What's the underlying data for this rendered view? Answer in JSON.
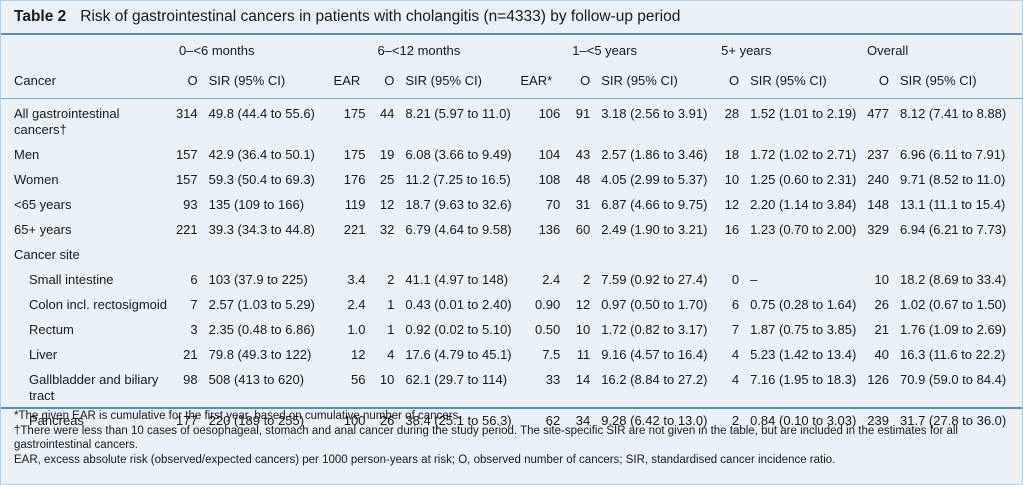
{
  "title": {
    "number": "Table 2",
    "text": "Risk of gastrointestinal cancers in patients with cholangitis (n=4333) by follow-up period"
  },
  "groups": [
    "0–<6 months",
    "6–<12 months",
    "1–<5 years",
    "5+ years",
    "Overall"
  ],
  "headers": {
    "cancer": "Cancer",
    "o": "O",
    "sir": "SIR (95% CI)",
    "ear": "EAR",
    "ear_star": "EAR*"
  },
  "rows": [
    {
      "label": "All gastrointestinal",
      "label2": "cancers†",
      "v": [
        "314",
        "49.8 (44.4 to 55.6)",
        "175",
        "44",
        "8.21 (5.97 to 11.0)",
        "106",
        "91",
        "3.18 (2.56 to 3.91)",
        "28",
        "1.52 (1.01 to 2.19)",
        "477",
        "8.12 (7.41 to 8.88)"
      ]
    },
    {
      "label": "Men",
      "v": [
        "157",
        "42.9 (36.4 to 50.1)",
        "175",
        "19",
        "6.08 (3.66 to 9.49)",
        "104",
        "43",
        "2.57 (1.86 to 3.46)",
        "18",
        "1.72 (1.02 to 2.71)",
        "237",
        "6.96 (6.11 to 7.91)"
      ]
    },
    {
      "label": "Women",
      "v": [
        "157",
        "59.3 (50.4 to 69.3)",
        "176",
        "25",
        "11.2 (7.25 to 16.5)",
        "108",
        "48",
        "4.05 (2.99 to 5.37)",
        "10",
        "1.25 (0.60 to 2.31)",
        "240",
        "9.71 (8.52 to 11.0)"
      ]
    },
    {
      "label": "<65 years",
      "v": [
        "93",
        "135 (109 to 166)",
        "119",
        "12",
        "18.7 (9.63 to 32.6)",
        "70",
        "31",
        "6.87 (4.66 to 9.75)",
        "12",
        "2.20 (1.14 to 3.84)",
        "148",
        "13.1 (11.1 to 15.4)"
      ]
    },
    {
      "label": "65+ years",
      "v": [
        "221",
        "39.3 (34.3 to 44.8)",
        "221",
        "32",
        "6.79 (4.64 to 9.58)",
        "136",
        "60",
        "2.49 (1.90 to 3.21)",
        "16",
        "1.23 (0.70 to 2.00)",
        "329",
        "6.94 (6.21 to 7.73)"
      ]
    },
    {
      "label": "Cancer site",
      "v": [
        "",
        "",
        "",
        "",
        "",
        "",
        "",
        "",
        "",
        "",
        "",
        ""
      ]
    },
    {
      "label": "Small intestine",
      "sub": true,
      "v": [
        "6",
        "103 (37.9 to 225)",
        "3.4",
        "2",
        "41.1 (4.97 to 148)",
        "2.4",
        "2",
        "7.59 (0.92 to 27.4)",
        "0",
        "–",
        "10",
        "18.2 (8.69 to 33.4)"
      ]
    },
    {
      "label": "Colon incl. rectosigmoid",
      "sub": true,
      "v": [
        "7",
        "2.57 (1.03 to 5.29)",
        "2.4",
        "1",
        "0.43 (0.01 to 2.40)",
        "0.90",
        "12",
        "0.97 (0.50 to 1.70)",
        "6",
        "0.75 (0.28 to 1.64)",
        "26",
        "1.02 (0.67 to 1.50)"
      ]
    },
    {
      "label": "Rectum",
      "sub": true,
      "v": [
        "3",
        "2.35 (0.48 to 6.86)",
        "1.0",
        "1",
        "0.92 (0.02 to 5.10)",
        "0.50",
        "10",
        "1.72 (0.82 to 3.17)",
        "7",
        "1.87 (0.75 to 3.85)",
        "21",
        "1.76 (1.09 to 2.69)"
      ]
    },
    {
      "label": "Liver",
      "sub": true,
      "v": [
        "21",
        "79.8 (49.3 to 122)",
        "12",
        "4",
        "17.6 (4.79 to 45.1)",
        "7.5",
        "11",
        "9.16 (4.57 to 16.4)",
        "4",
        "5.23 (1.42 to 13.4)",
        "40",
        "16.3 (11.6 to 22.2)"
      ]
    },
    {
      "label": "Gallbladder and biliary",
      "label2": "tract",
      "sub": true,
      "v": [
        "98",
        "508 (413 to 620)",
        "56",
        "10",
        "62.1 (29.7 to 114)",
        "33",
        "14",
        "16.2 (8.84 to 27.2)",
        "4",
        "7.16 (1.95 to 18.3)",
        "126",
        "70.9 (59.0 to 84.4)"
      ]
    },
    {
      "label": "Pancreas",
      "sub": true,
      "v": [
        "177",
        "220 (189 to 255)",
        "100",
        "26",
        "38.4 (25.1 to 56.3)",
        "62",
        "34",
        "9.28 (6.42 to 13.0)",
        "2",
        "0.84 (0.10 to 3.03)",
        "239",
        "31.7 (27.8 to 36.0)"
      ]
    }
  ],
  "footnotes": [
    "*The given EAR is cumulative for the first year, based on cumulative number of cancers.",
    "†There were less than 10 cases of oesophageal, stomach and anal cancer during the study period. The site-specific SIR are not given in the table, but are included in the estimates for all gastrointestinal cancers.",
    "EAR, excess absolute risk (observed/expected cancers) per 1000 person-years at risk; O, observed number of cancers; SIR, standardised cancer incidence ratio."
  ]
}
